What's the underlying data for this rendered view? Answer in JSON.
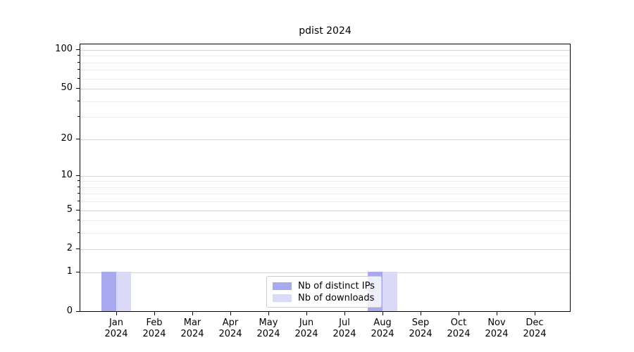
{
  "title": "pdist 2024",
  "chart_data": {
    "type": "bar",
    "title": "pdist 2024",
    "categories": [
      "Jan 2024",
      "Feb 2024",
      "Mar 2024",
      "Apr 2024",
      "May 2024",
      "Jun 2024",
      "Jul 2024",
      "Aug 2024",
      "Sep 2024",
      "Oct 2024",
      "Nov 2024",
      "Dec 2024"
    ],
    "series": [
      {
        "name": "Nb of distinct IPs",
        "color": "#a9a9f0",
        "values": [
          1,
          0,
          0,
          0,
          0,
          0,
          0,
          1,
          0,
          0,
          0,
          0
        ]
      },
      {
        "name": "Nb of downloads",
        "color": "#dadaf8",
        "values": [
          1,
          0,
          0,
          0,
          0,
          0,
          0,
          1,
          0,
          0,
          0,
          0
        ]
      }
    ],
    "y_axis": {
      "scale": "log10(1+v)",
      "major_ticks": [
        0,
        1,
        2,
        5,
        10,
        20,
        50,
        100
      ],
      "minor_ticks": [
        3,
        4,
        6,
        7,
        8,
        9,
        30,
        40,
        60,
        70,
        80,
        90
      ],
      "tick_value_at_top_reference": 100
    },
    "x_axis": {
      "tick_labels_two_line": true
    },
    "legend": {
      "position": "lower center",
      "items": [
        "Nb of distinct IPs",
        "Nb of downloads"
      ]
    },
    "grid": "horizontal-only",
    "colors": {
      "distinct_ips_bar": "#a9a9f0",
      "downloads_bar": "#dadaf8",
      "major_grid": "#d4d4d4",
      "minor_grid": "#ededed",
      "spine": "#000000",
      "background": "#ffffff"
    }
  }
}
